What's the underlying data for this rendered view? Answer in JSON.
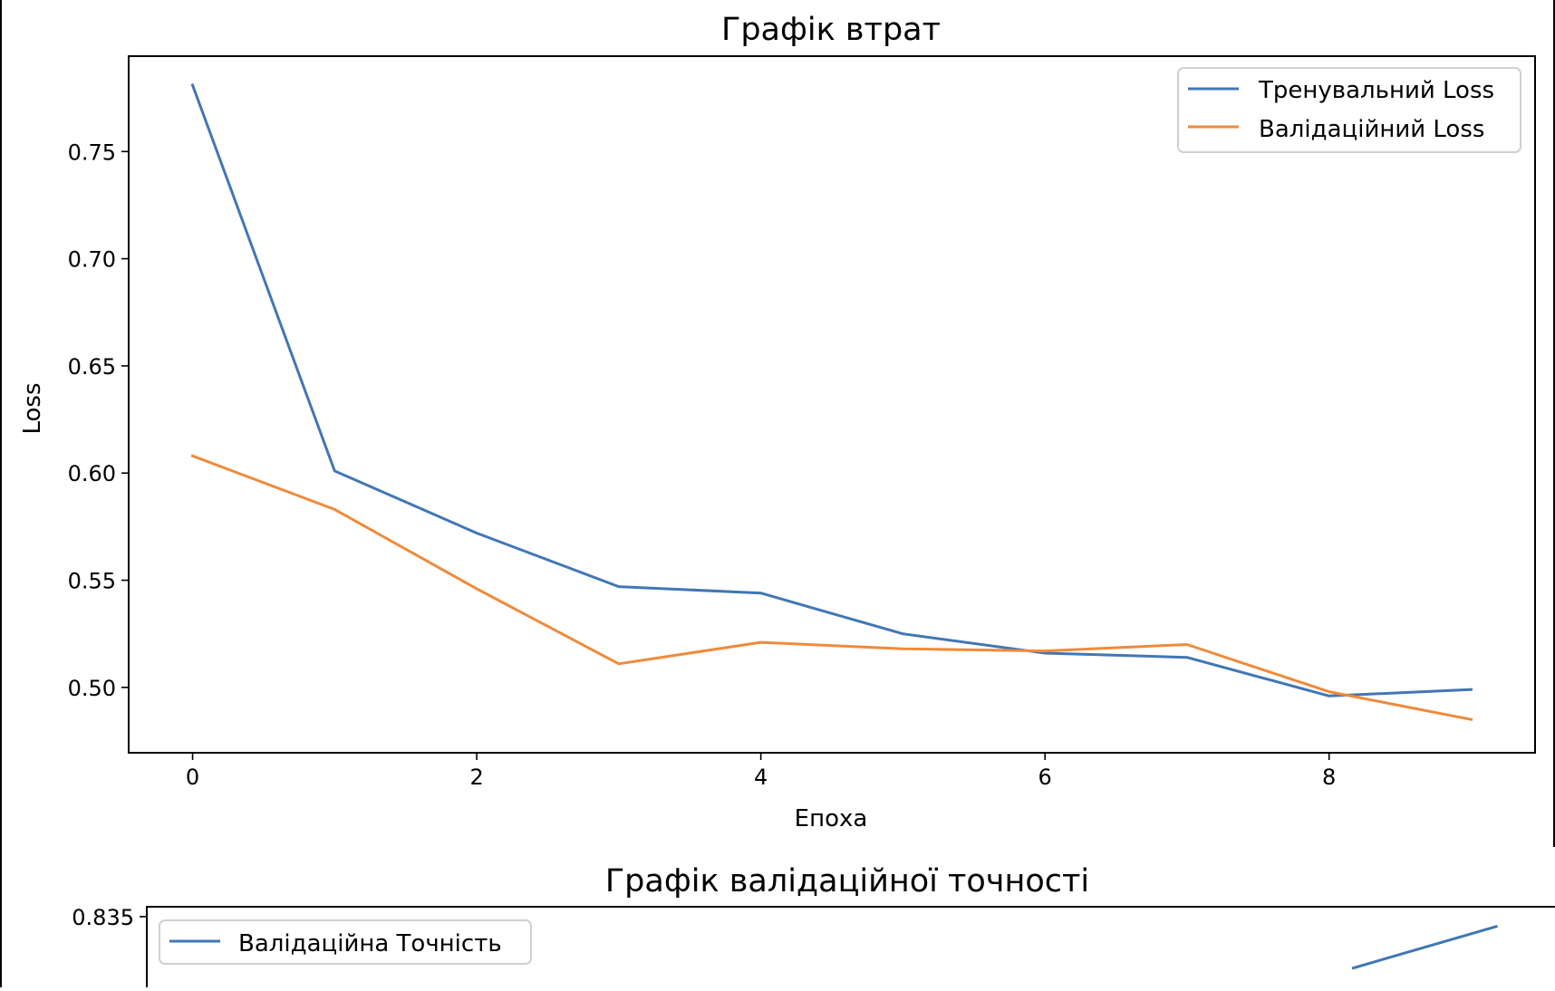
{
  "chart_data": [
    {
      "type": "line",
      "title": "Графік втрат",
      "xlabel": "Епоха",
      "ylabel": "Loss",
      "x": [
        0,
        1,
        2,
        3,
        4,
        5,
        6,
        7,
        8,
        9
      ],
      "series": [
        {
          "name": "Тренувальний Loss",
          "color": "#4177b5",
          "values": [
            0.781,
            0.601,
            0.572,
            0.547,
            0.544,
            0.525,
            0.516,
            0.514,
            0.496,
            0.499
          ]
        },
        {
          "name": "Валідаційний Loss",
          "color": "#f08a3a",
          "values": [
            0.608,
            0.583,
            0.546,
            0.511,
            0.521,
            0.518,
            0.517,
            0.52,
            0.498,
            0.485
          ]
        }
      ],
      "xlim": [
        -0.45,
        9.45
      ],
      "ylim": [
        0.4695,
        0.7945
      ],
      "xticks": [
        0,
        2,
        4,
        6,
        8
      ],
      "xtick_labels": [
        "0",
        "2",
        "4",
        "6",
        "8"
      ],
      "yticks": [
        0.5,
        0.55,
        0.6,
        0.65,
        0.7,
        0.75
      ],
      "ytick_labels": [
        "0.50",
        "0.55",
        "0.60",
        "0.65",
        "0.70",
        "0.75"
      ],
      "legend": "top-right",
      "grid": false
    },
    {
      "type": "line",
      "title": "Графік валідаційної точності",
      "xlabel": "",
      "ylabel": "",
      "x": [
        8,
        9
      ],
      "series": [
        {
          "name": "Валідаційна Точність",
          "color": "#4177b5",
          "values": [
            0.8272,
            0.8335
          ]
        }
      ],
      "xlim": [
        -0.45,
        9.45
      ],
      "ylim": [
        0.82,
        0.8365
      ],
      "yticks": [
        0.835
      ],
      "ytick_labels": [
        "0.835"
      ],
      "legend": "top-left",
      "grid": false
    }
  ]
}
